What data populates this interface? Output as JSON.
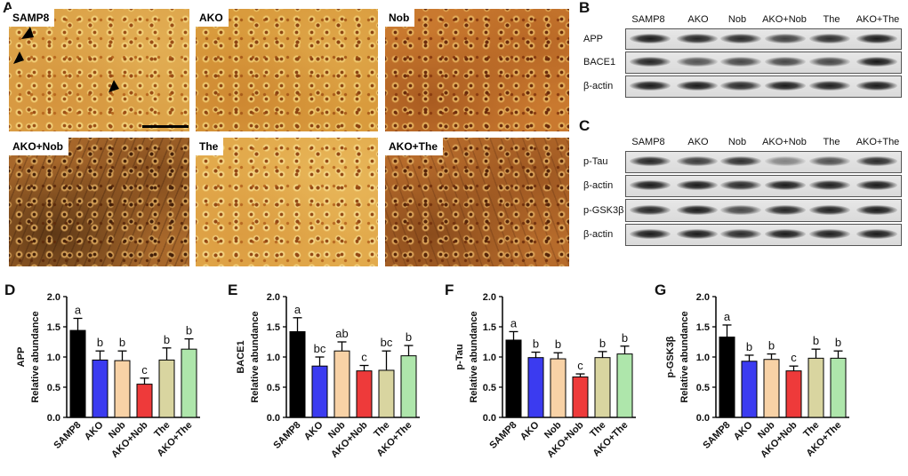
{
  "panel_labels": [
    "A",
    "B",
    "C",
    "D",
    "E",
    "F",
    "G"
  ],
  "micrographs": [
    "SAMP8",
    "AKO",
    "Nob",
    "AKO+Nob",
    "The",
    "AKO+The"
  ],
  "blot_b": {
    "lanes": [
      "SAMP8",
      "AKO",
      "Nob",
      "AKO+Nob",
      "The",
      "AKO+The"
    ],
    "rows": [
      "APP",
      "BACE1",
      "β-actin"
    ]
  },
  "blot_c": {
    "lanes": [
      "SAMP8",
      "AKO",
      "Nob",
      "AKO+Nob",
      "The",
      "AKO+The"
    ],
    "rows": [
      "p-Tau",
      "β-actin",
      "p-GSK3β",
      "β-actin"
    ]
  },
  "chart_data": [
    {
      "type": "bar",
      "ylabel": [
        "APP",
        "Relative abundance"
      ],
      "categories": [
        "SAMP8",
        "AKO",
        "Nob",
        "AKO+Nob",
        "The",
        "AKO+The"
      ],
      "values": [
        1.44,
        0.95,
        0.94,
        0.55,
        0.95,
        1.13
      ],
      "errors": [
        0.2,
        0.15,
        0.16,
        0.1,
        0.2,
        0.17
      ],
      "letters": [
        "a",
        "b",
        "b",
        "c",
        "b",
        "b"
      ],
      "colors": [
        "#000000",
        "#3b3bf0",
        "#f8d2a6",
        "#ee3a3a",
        "#d9d5a0",
        "#aee6ab"
      ],
      "ylim": [
        0,
        2
      ],
      "yticks": [
        "0.0",
        "0.5",
        "1.0",
        "1.5",
        "2.0"
      ],
      "grid": false
    },
    {
      "type": "bar",
      "ylabel": [
        "BACE1",
        "Relative abundance"
      ],
      "categories": [
        "SAMP8",
        "AKO",
        "Nob",
        "AKO+Nob",
        "The",
        "AKO+The"
      ],
      "values": [
        1.42,
        0.85,
        1.1,
        0.77,
        0.78,
        1.02
      ],
      "errors": [
        0.23,
        0.15,
        0.15,
        0.09,
        0.32,
        0.17
      ],
      "letters": [
        "a",
        "bc",
        "ab",
        "c",
        "bc",
        "b"
      ],
      "colors": [
        "#000000",
        "#3b3bf0",
        "#f8d2a6",
        "#ee3a3a",
        "#d9d5a0",
        "#aee6ab"
      ],
      "ylim": [
        0,
        2
      ],
      "yticks": [
        "0.0",
        "0.5",
        "1.0",
        "1.5",
        "2.0"
      ],
      "grid": false
    },
    {
      "type": "bar",
      "ylabel": [
        "p-Tau",
        "Relative abundance"
      ],
      "categories": [
        "SAMP8",
        "AKO",
        "Nob",
        "AKO+Nob",
        "The",
        "AKO+The"
      ],
      "values": [
        1.28,
        0.99,
        0.97,
        0.67,
        0.99,
        1.05
      ],
      "errors": [
        0.14,
        0.09,
        0.1,
        0.05,
        0.1,
        0.13
      ],
      "letters": [
        "a",
        "b",
        "b",
        "c",
        "b",
        "b"
      ],
      "colors": [
        "#000000",
        "#3b3bf0",
        "#f8d2a6",
        "#ee3a3a",
        "#d9d5a0",
        "#aee6ab"
      ],
      "ylim": [
        0,
        2
      ],
      "yticks": [
        "0.0",
        "0.5",
        "1.0",
        "1.5",
        "2.0"
      ],
      "grid": false
    },
    {
      "type": "bar",
      "ylabel": [
        "p-GSK3β",
        "Relative abundance"
      ],
      "categories": [
        "SAMP8",
        "AKO",
        "Nob",
        "AKO+Nob",
        "The",
        "AKO+The"
      ],
      "values": [
        1.33,
        0.93,
        0.96,
        0.77,
        0.98,
        0.98
      ],
      "errors": [
        0.2,
        0.1,
        0.09,
        0.08,
        0.15,
        0.12
      ],
      "letters": [
        "a",
        "b",
        "b",
        "c",
        "b",
        "b"
      ],
      "colors": [
        "#000000",
        "#3b3bf0",
        "#f8d2a6",
        "#ee3a3a",
        "#d9d5a0",
        "#aee6ab"
      ],
      "ylim": [
        0,
        2
      ],
      "yticks": [
        "0.0",
        "0.5",
        "1.0",
        "1.5",
        "2.0"
      ],
      "grid": false
    }
  ]
}
